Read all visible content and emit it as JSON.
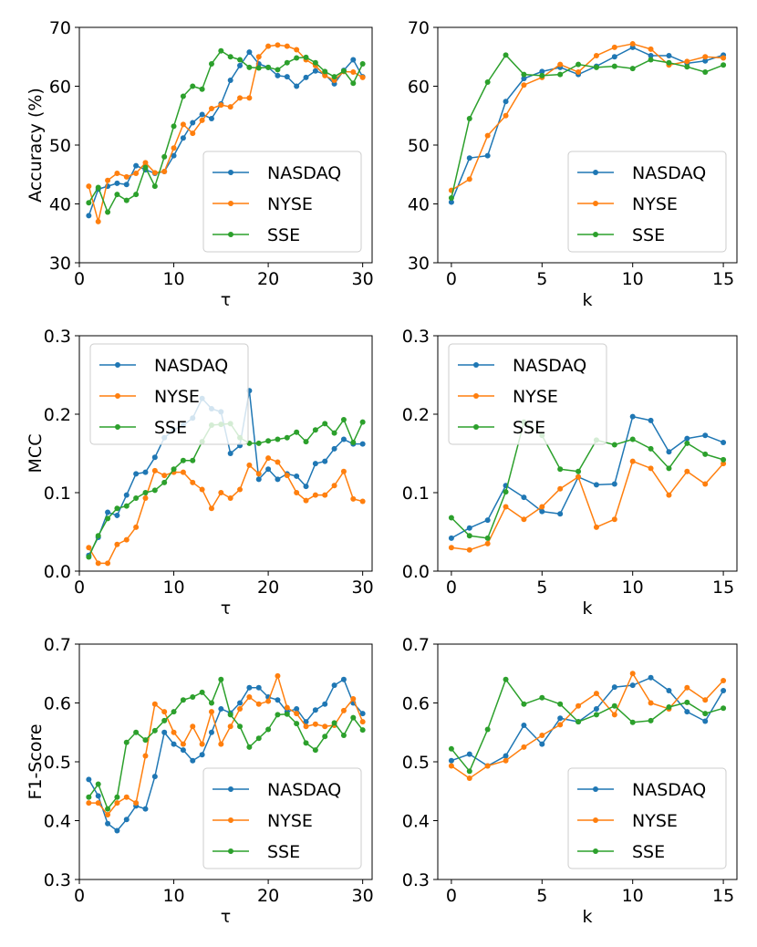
{
  "colors": {
    "NASDAQ": "#1f77b4",
    "NYSE": "#ff7f0e",
    "SSE": "#2ca02c"
  },
  "chart_data": [
    {
      "id": "acc_tau",
      "type": "line",
      "xlabel": "τ",
      "ylabel": "Accuracy (%)",
      "xlim": [
        0,
        31
      ],
      "ylim": [
        30,
        70
      ],
      "xticks": [
        0,
        10,
        20,
        30
      ],
      "yticks": [
        30,
        40,
        50,
        60,
        70
      ],
      "yticklabels": [
        "30",
        "40",
        "50",
        "60",
        "70"
      ],
      "legend": "bottom-right",
      "x": [
        1,
        2,
        3,
        4,
        5,
        6,
        7,
        8,
        9,
        10,
        11,
        12,
        13,
        14,
        15,
        16,
        17,
        18,
        19,
        20,
        21,
        22,
        23,
        24,
        25,
        26,
        27,
        28,
        29,
        30
      ],
      "series": [
        {
          "name": "NASDAQ",
          "values": [
            38.0,
            42.5,
            43.0,
            43.5,
            43.3,
            46.5,
            45.8,
            45.2,
            45.5,
            48.2,
            51.2,
            53.8,
            55.2,
            54.5,
            57.0,
            61.0,
            63.5,
            65.8,
            63.8,
            63.2,
            61.8,
            61.6,
            60.0,
            61.5,
            62.6,
            62.0,
            60.4,
            62.7,
            64.5,
            61.6
          ]
        },
        {
          "name": "NYSE",
          "values": [
            43.0,
            37.0,
            44.0,
            45.2,
            44.6,
            45.2,
            47.0,
            45.3,
            45.5,
            49.5,
            53.5,
            52.0,
            54.2,
            56.2,
            56.8,
            56.5,
            58.0,
            58.0,
            65.0,
            66.8,
            67.0,
            66.8,
            66.2,
            64.5,
            63.5,
            61.8,
            61.0,
            62.5,
            62.4,
            61.5
          ]
        },
        {
          "name": "SSE",
          "values": [
            40.2,
            42.8,
            38.6,
            41.6,
            40.6,
            41.6,
            46.2,
            43.0,
            48.0,
            53.2,
            58.3,
            60.0,
            59.5,
            63.8,
            66.0,
            65.0,
            64.5,
            63.2,
            63.1,
            63.2,
            62.8,
            64.0,
            64.8,
            64.9,
            64.0,
            62.5,
            61.6,
            62.6,
            60.5,
            63.8
          ]
        }
      ]
    },
    {
      "id": "acc_k",
      "type": "line",
      "xlabel": "k",
      "ylabel": "",
      "xlim": [
        -0.75,
        15.75
      ],
      "ylim": [
        30,
        70
      ],
      "xticks": [
        0,
        5,
        10,
        15
      ],
      "yticks": [
        30,
        40,
        50,
        60,
        70
      ],
      "yticklabels": [
        "30",
        "40",
        "50",
        "60",
        "70"
      ],
      "legend": "bottom-right",
      "x": [
        0,
        1,
        2,
        3,
        4,
        5,
        6,
        7,
        8,
        9,
        10,
        11,
        12,
        13,
        14,
        15
      ],
      "series": [
        {
          "name": "NASDAQ",
          "values": [
            40.3,
            47.8,
            48.2,
            57.4,
            61.3,
            62.5,
            63.2,
            62.0,
            63.4,
            65.0,
            66.6,
            65.2,
            65.2,
            63.9,
            64.3,
            65.3
          ]
        },
        {
          "name": "NYSE",
          "values": [
            42.3,
            44.2,
            51.6,
            55.0,
            60.2,
            61.5,
            63.7,
            62.4,
            65.2,
            66.6,
            67.2,
            66.3,
            63.6,
            64.2,
            65.0,
            64.8
          ]
        },
        {
          "name": "SSE",
          "values": [
            41.0,
            54.5,
            60.7,
            65.3,
            62.0,
            61.8,
            62.0,
            63.7,
            63.2,
            63.4,
            63.0,
            64.5,
            64.0,
            63.3,
            62.4,
            63.6
          ]
        }
      ]
    },
    {
      "id": "mcc_tau",
      "type": "line",
      "xlabel": "τ",
      "ylabel": "MCC",
      "xlim": [
        0,
        31
      ],
      "ylim": [
        0.0,
        0.3
      ],
      "xticks": [
        0,
        10,
        20,
        30
      ],
      "yticks": [
        0.0,
        0.1,
        0.2,
        0.3
      ],
      "yticklabels": [
        "0.0",
        "0.1",
        "0.2",
        "0.3"
      ],
      "legend": "top-left",
      "x": [
        1,
        2,
        3,
        4,
        5,
        6,
        7,
        8,
        9,
        10,
        11,
        12,
        13,
        14,
        15,
        16,
        17,
        18,
        19,
        20,
        21,
        22,
        23,
        24,
        25,
        26,
        27,
        28,
        29,
        30
      ],
      "series": [
        {
          "name": "NASDAQ",
          "values": [
            0.02,
            0.043,
            0.075,
            0.071,
            0.097,
            0.124,
            0.126,
            0.145,
            0.17,
            0.18,
            0.186,
            0.195,
            0.22,
            0.207,
            0.203,
            0.15,
            0.16,
            0.23,
            0.117,
            0.13,
            0.117,
            0.124,
            0.121,
            0.108,
            0.137,
            0.14,
            0.156,
            0.168,
            0.162,
            0.162
          ]
        },
        {
          "name": "NYSE",
          "values": [
            0.03,
            0.01,
            0.01,
            0.034,
            0.04,
            0.056,
            0.093,
            0.128,
            0.122,
            0.126,
            0.126,
            0.113,
            0.104,
            0.08,
            0.1,
            0.093,
            0.104,
            0.135,
            0.124,
            0.144,
            0.139,
            0.122,
            0.1,
            0.09,
            0.097,
            0.097,
            0.109,
            0.127,
            0.092,
            0.089
          ]
        },
        {
          "name": "SSE",
          "values": [
            0.018,
            0.045,
            0.067,
            0.08,
            0.083,
            0.093,
            0.1,
            0.103,
            0.113,
            0.13,
            0.141,
            0.141,
            0.165,
            0.186,
            0.187,
            0.188,
            0.17,
            0.163,
            0.163,
            0.166,
            0.168,
            0.17,
            0.177,
            0.165,
            0.18,
            0.188,
            0.176,
            0.193,
            0.164,
            0.19
          ]
        }
      ]
    },
    {
      "id": "mcc_k",
      "type": "line",
      "xlabel": "k",
      "ylabel": "",
      "xlim": [
        -0.75,
        15.75
      ],
      "ylim": [
        0.0,
        0.3
      ],
      "xticks": [
        0,
        5,
        10,
        15
      ],
      "yticks": [
        0.0,
        0.1,
        0.2,
        0.3
      ],
      "yticklabels": [
        "0.0",
        "0.1",
        "0.2",
        "0.3"
      ],
      "legend": "top-left",
      "x": [
        0,
        1,
        2,
        3,
        4,
        5,
        6,
        7,
        8,
        9,
        10,
        11,
        12,
        13,
        14,
        15
      ],
      "series": [
        {
          "name": "NASDAQ",
          "values": [
            0.042,
            0.055,
            0.065,
            0.109,
            0.094,
            0.076,
            0.073,
            0.12,
            0.11,
            0.111,
            0.197,
            0.192,
            0.152,
            0.169,
            0.173,
            0.164
          ]
        },
        {
          "name": "NYSE",
          "values": [
            0.03,
            0.027,
            0.035,
            0.082,
            0.066,
            0.082,
            0.105,
            0.12,
            0.056,
            0.066,
            0.14,
            0.131,
            0.097,
            0.127,
            0.111,
            0.137
          ]
        },
        {
          "name": "SSE",
          "values": [
            0.068,
            0.045,
            0.042,
            0.101,
            0.19,
            0.173,
            0.13,
            0.127,
            0.167,
            0.161,
            0.168,
            0.156,
            0.131,
            0.163,
            0.149,
            0.142
          ]
        }
      ]
    },
    {
      "id": "f1_tau",
      "type": "line",
      "xlabel": "τ",
      "ylabel": "F1-Score",
      "xlim": [
        0,
        31
      ],
      "ylim": [
        0.3,
        0.7
      ],
      "xticks": [
        0,
        10,
        20,
        30
      ],
      "yticks": [
        0.3,
        0.4,
        0.5,
        0.6,
        0.7
      ],
      "yticklabels": [
        "0.3",
        "0.4",
        "0.5",
        "0.6",
        "0.7"
      ],
      "legend": "bottom-right",
      "x": [
        1,
        2,
        3,
        4,
        5,
        6,
        7,
        8,
        9,
        10,
        11,
        12,
        13,
        14,
        15,
        16,
        17,
        18,
        19,
        20,
        21,
        22,
        23,
        24,
        25,
        26,
        27,
        28,
        29,
        30
      ],
      "series": [
        {
          "name": "NASDAQ",
          "values": [
            0.47,
            0.442,
            0.395,
            0.383,
            0.402,
            0.425,
            0.42,
            0.475,
            0.55,
            0.53,
            0.52,
            0.502,
            0.512,
            0.55,
            0.59,
            0.583,
            0.6,
            0.626,
            0.626,
            0.61,
            0.605,
            0.585,
            0.59,
            0.568,
            0.588,
            0.598,
            0.63,
            0.64,
            0.6,
            0.582
          ]
        },
        {
          "name": "NYSE",
          "values": [
            0.43,
            0.43,
            0.41,
            0.43,
            0.44,
            0.43,
            0.51,
            0.598,
            0.585,
            0.55,
            0.53,
            0.56,
            0.53,
            0.585,
            0.53,
            0.56,
            0.59,
            0.61,
            0.598,
            0.603,
            0.646,
            0.592,
            0.582,
            0.56,
            0.564,
            0.56,
            0.562,
            0.587,
            0.607,
            0.568
          ]
        },
        {
          "name": "SSE",
          "values": [
            0.44,
            0.462,
            0.42,
            0.44,
            0.533,
            0.55,
            0.537,
            0.553,
            0.57,
            0.585,
            0.605,
            0.61,
            0.618,
            0.6,
            0.64,
            0.58,
            0.56,
            0.525,
            0.54,
            0.555,
            0.58,
            0.581,
            0.565,
            0.532,
            0.52,
            0.543,
            0.566,
            0.545,
            0.575,
            0.554
          ]
        }
      ]
    },
    {
      "id": "f1_k",
      "type": "line",
      "xlabel": "k",
      "ylabel": "",
      "xlim": [
        -0.75,
        15.75
      ],
      "ylim": [
        0.3,
        0.7
      ],
      "xticks": [
        0,
        5,
        10,
        15
      ],
      "yticks": [
        0.3,
        0.4,
        0.5,
        0.6,
        0.7
      ],
      "yticklabels": [
        "0.3",
        "0.4",
        "0.5",
        "0.6",
        "0.7"
      ],
      "legend": "bottom-right",
      "x": [
        0,
        1,
        2,
        3,
        4,
        5,
        6,
        7,
        8,
        9,
        10,
        11,
        12,
        13,
        14,
        15
      ],
      "series": [
        {
          "name": "NASDAQ",
          "values": [
            0.502,
            0.513,
            0.493,
            0.51,
            0.562,
            0.53,
            0.574,
            0.568,
            0.59,
            0.627,
            0.63,
            0.643,
            0.621,
            0.585,
            0.569,
            0.621
          ]
        },
        {
          "name": "NYSE",
          "values": [
            0.493,
            0.472,
            0.493,
            0.502,
            0.525,
            0.545,
            0.563,
            0.595,
            0.616,
            0.58,
            0.65,
            0.6,
            0.59,
            0.626,
            0.605,
            0.638
          ]
        },
        {
          "name": "SSE",
          "values": [
            0.522,
            0.484,
            0.555,
            0.64,
            0.598,
            0.609,
            0.598,
            0.568,
            0.58,
            0.595,
            0.567,
            0.57,
            0.593,
            0.601,
            0.582,
            0.591
          ]
        }
      ]
    }
  ]
}
